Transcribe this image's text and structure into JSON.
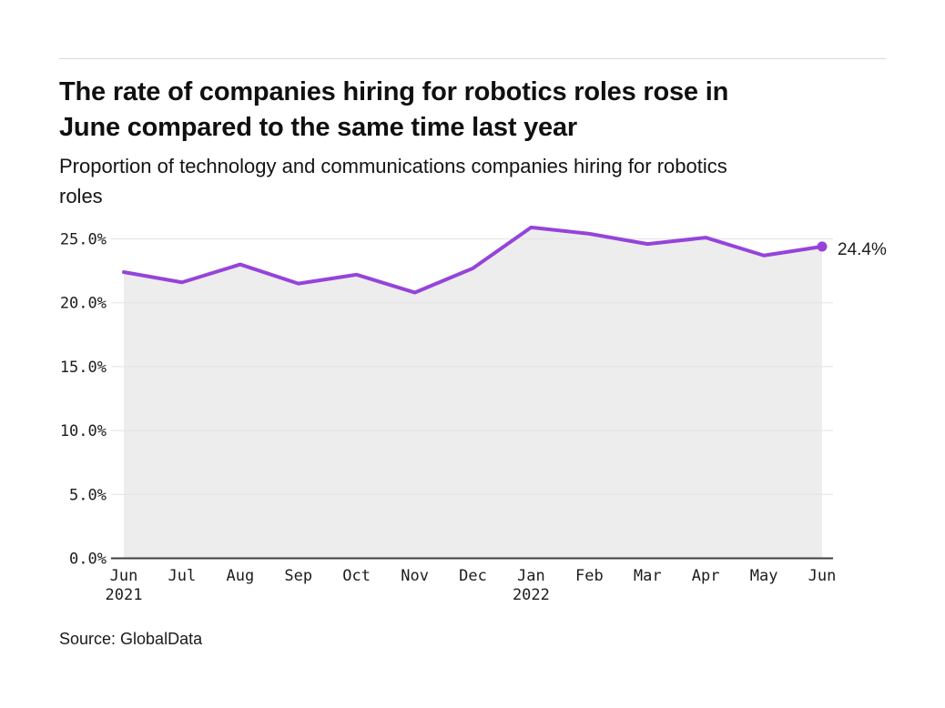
{
  "chart_data": {
    "type": "line",
    "title": "The rate of companies hiring for robotics roles rose in June compared to the same time last year",
    "title_lines": [
      "The rate of companies hiring for robotics roles rose in",
      "June compared to the same time last year"
    ],
    "subtitle": "Proportion of technology and communications companies hiring for robotics roles",
    "subtitle_lines": [
      "Proportion of technology and communications companies hiring for robotics",
      "roles"
    ],
    "categories": [
      "Jun 2021",
      "Jul 2021",
      "Aug 2021",
      "Sep 2021",
      "Oct 2021",
      "Nov 2021",
      "Dec 2021",
      "Jan 2022",
      "Feb 2022",
      "Mar 2022",
      "Apr 2022",
      "May 2022",
      "Jun 2022"
    ],
    "x_tick_months": [
      "Jun",
      "Jul",
      "Aug",
      "Sep",
      "Oct",
      "Nov",
      "Dec",
      "Jan",
      "Feb",
      "Mar",
      "Apr",
      "May",
      "Jun"
    ],
    "x_tick_years": {
      "0": "2021",
      "7": "2022"
    },
    "values": [
      22.4,
      21.6,
      23.0,
      21.5,
      22.2,
      20.8,
      22.7,
      25.9,
      25.4,
      24.6,
      25.1,
      23.7,
      24.4
    ],
    "unit": "%",
    "ylim": [
      0,
      27.5
    ],
    "yticks": [
      0,
      5,
      10,
      15,
      20,
      25
    ],
    "ytick_labels": [
      "0.0%",
      "5.0%",
      "10.0%",
      "15.0%",
      "20.0%",
      "25.0%"
    ],
    "grid": true,
    "legend": "none",
    "area_fill": true,
    "end_annotation": "24.4%",
    "colors": {
      "line": "#9544da",
      "marker": "#9544da",
      "area_fill": "#ededed",
      "gridline": "#e3e3e3",
      "axis": "#3f3f3f",
      "tick_text": "#1c1c1c"
    }
  },
  "source": "Source: GlobalData"
}
